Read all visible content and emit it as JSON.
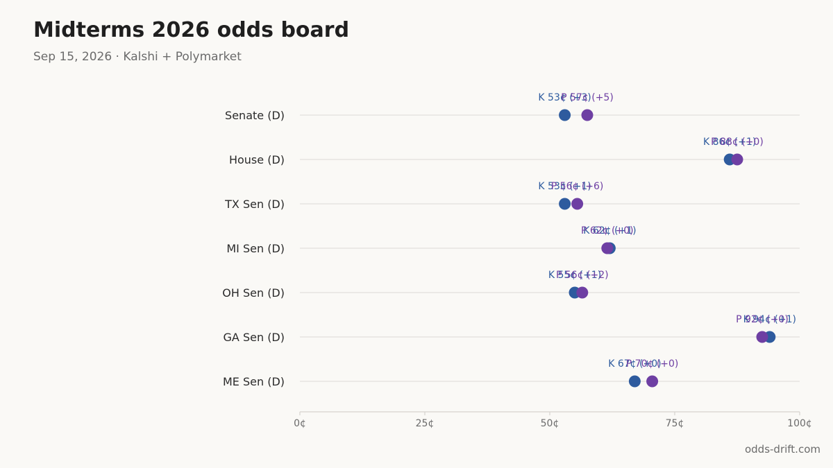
{
  "header": {
    "title": "Midterms 2026 odds board",
    "subtitle": "Sep 15, 2026 · Kalshi + Polymarket"
  },
  "footer": {
    "source": "odds-drift.com"
  },
  "colors": {
    "kalshi": "#2e5b9e",
    "polymarket": "#6e3fa3",
    "grid": "#e2e0dc",
    "axis": "#d6d3ce"
  },
  "chart_data": {
    "type": "scatter",
    "title": "Midterms 2026 odds board",
    "subtitle": "Sep 15, 2026 · Kalshi + Polymarket",
    "xlabel": "",
    "ylabel": "",
    "xlim": [
      0,
      100
    ],
    "x_ticks": [
      "0¢",
      "25¢",
      "50¢",
      "75¢",
      "100¢"
    ],
    "x_tick_values": [
      0,
      25,
      50,
      75,
      100
    ],
    "grid": true,
    "legend": "none",
    "categories": [
      "Senate (D)",
      "House (D)",
      "TX Sen (D)",
      "MI Sen (D)",
      "OH Sen (D)",
      "GA Sen (D)",
      "ME Sen (D)"
    ],
    "series": [
      {
        "values": [
          53,
          86,
          53,
          62,
          55,
          94,
          67
        ],
        "labels": [
          "K 53¢ (+3)",
          "K 86¢ (+1)",
          "K 53¢ (+1)",
          "K 62¢ (+1)",
          "K 55¢ (+1)",
          "K 94¢ (+1)",
          "K 67¢ (+0)"
        ]
      },
      {
        "values": [
          57.5,
          87.5,
          55.5,
          61.5,
          56.5,
          92.5,
          70.5
        ],
        "labels": [
          "P 57¢ (+5)",
          "P 88¢ (+0)",
          "P 56¢ (+6)",
          "P 62¢ (+0)",
          "P 56¢ (+2)",
          "P 92¢ (+0)",
          "P 70¢ (+0)"
        ]
      }
    ]
  }
}
